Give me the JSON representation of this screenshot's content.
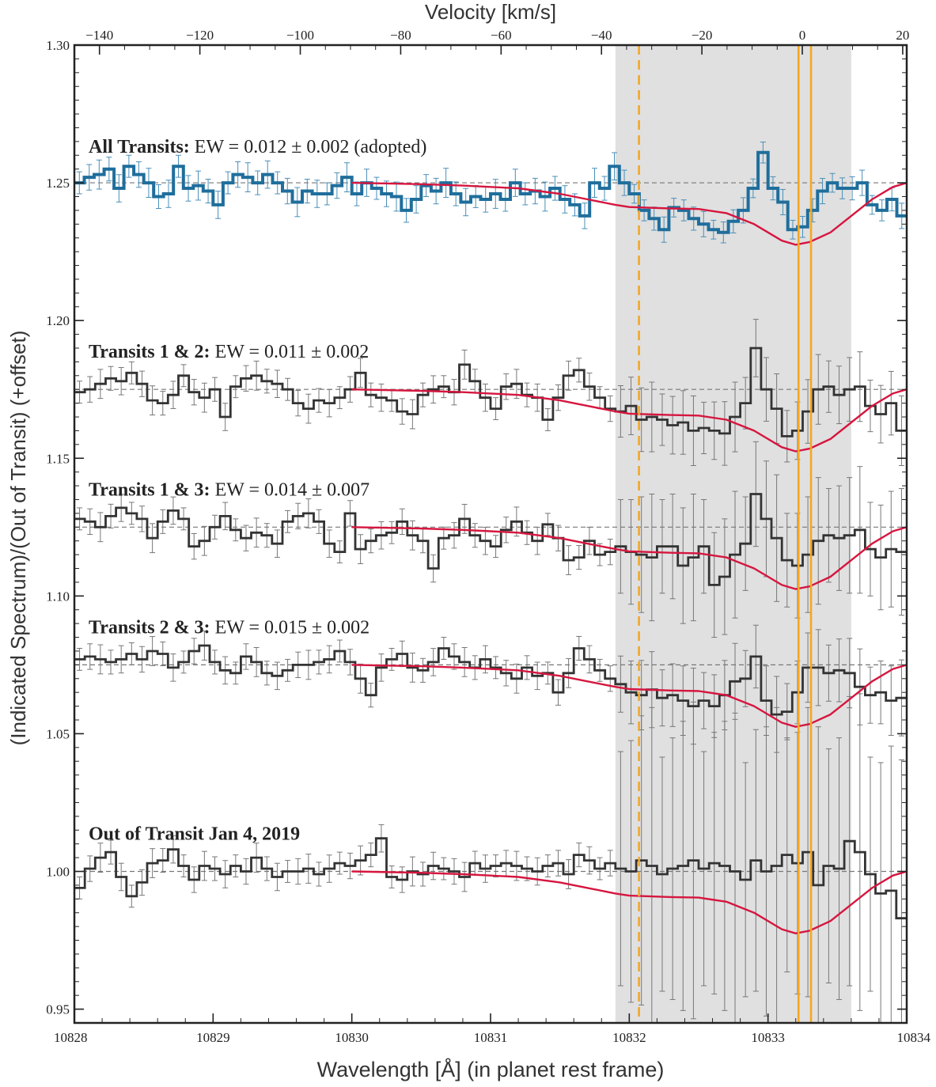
{
  "chart_data": {
    "type": "line",
    "xlabel": "Wavelength [Å] (in planet rest frame)",
    "x2label": "Velocity [km/s]",
    "ylabel": "(Indicated Spectrum)/(Out of Transit) (+offset)",
    "xlim": [
      10828,
      10834
    ],
    "ylim": [
      0.945,
      1.3
    ],
    "x2lim": [
      -145,
      20.8
    ],
    "xticks": [
      10828,
      10829,
      10830,
      10831,
      10832,
      10833,
      10834
    ],
    "x2ticks": [
      -140,
      -120,
      -100,
      -80,
      -60,
      -40,
      -20,
      0,
      20
    ],
    "yticks": [
      0.95,
      1.0,
      1.05,
      1.1,
      1.15,
      1.2,
      1.25,
      1.3
    ],
    "ytick_labels": [
      "0.95",
      "1.00",
      "1.05",
      "1.10",
      "1.15",
      "1.20",
      "1.25",
      "1.30"
    ],
    "shaded_region": [
      10831.9,
      10833.6
    ],
    "vlines": [
      {
        "x": 10832.07,
        "style": "dashed",
        "color": "#f5a623"
      },
      {
        "x": 10833.22,
        "style": "solid",
        "color": "#f5a623"
      },
      {
        "x": 10833.31,
        "style": "solid",
        "color": "#f5a623"
      }
    ],
    "series": [
      {
        "label_bold": "All Transits:",
        "label_rest": "EW = 0.012 ± 0.002 (adopted)",
        "color": "#1f6e9c",
        "errcolor": "#4a8fb8",
        "offset": 1.25,
        "thick": true,
        "err_start": 0.004,
        "err_end": 0.004,
        "values": [
          1.25,
          1.252,
          1.253,
          1.255,
          1.248,
          1.256,
          1.253,
          1.25,
          1.245,
          1.246,
          1.256,
          1.248,
          1.249,
          1.247,
          1.242,
          1.25,
          1.253,
          1.252,
          1.25,
          1.253,
          1.25,
          1.247,
          1.243,
          1.247,
          1.246,
          1.246,
          1.249,
          1.252,
          1.246,
          1.25,
          1.248,
          1.246,
          1.245,
          1.24,
          1.244,
          1.249,
          1.247,
          1.25,
          1.246,
          1.243,
          1.245,
          1.244,
          1.246,
          1.244,
          1.25,
          1.246,
          1.247,
          1.245,
          1.248,
          1.244,
          1.242,
          1.238,
          1.25,
          1.248,
          1.256,
          1.25,
          1.246,
          1.24,
          1.237,
          1.233,
          1.241,
          1.24,
          1.237,
          1.235,
          1.233,
          1.232,
          1.236,
          1.24,
          1.248,
          1.261,
          1.248,
          1.243,
          1.233,
          1.234,
          1.24,
          1.247,
          1.25,
          1.248,
          1.248,
          1.25,
          1.242,
          1.24,
          1.244,
          1.238
        ]
      },
      {
        "label_bold": "Transits 1 & 2:",
        "label_rest": "EW = 0.011 ± 0.002",
        "color": "#333333",
        "errcolor": "#777777",
        "offset": 1.175,
        "thick": false,
        "err_start": 0.004,
        "err_end": 0.011,
        "values": [
          1.174,
          1.175,
          1.177,
          1.179,
          1.178,
          1.181,
          1.177,
          1.171,
          1.17,
          1.173,
          1.18,
          1.174,
          1.172,
          1.175,
          1.165,
          1.176,
          1.179,
          1.18,
          1.178,
          1.177,
          1.175,
          1.17,
          1.168,
          1.171,
          1.17,
          1.172,
          1.175,
          1.181,
          1.173,
          1.172,
          1.171,
          1.167,
          1.166,
          1.173,
          1.175,
          1.176,
          1.174,
          1.184,
          1.178,
          1.172,
          1.168,
          1.176,
          1.177,
          1.173,
          1.172,
          1.164,
          1.172,
          1.18,
          1.182,
          1.176,
          1.172,
          1.168,
          1.167,
          1.169,
          1.164,
          1.165,
          1.164,
          1.162,
          1.163,
          1.16,
          1.161,
          1.16,
          1.159,
          1.165,
          1.17,
          1.19,
          1.175,
          1.168,
          1.158,
          1.16,
          1.167,
          1.175,
          1.176,
          1.173,
          1.175,
          1.176,
          1.169,
          1.166,
          1.17,
          1.16
        ]
      },
      {
        "label_bold": "Transits 1 & 3:",
        "label_rest": "EW = 0.014 ± 0.007",
        "color": "#333333",
        "errcolor": "#777777",
        "offset": 1.125,
        "thick": false,
        "err_start": 0.004,
        "err_end": 0.02,
        "values": [
          1.128,
          1.127,
          1.125,
          1.129,
          1.132,
          1.13,
          1.128,
          1.121,
          1.127,
          1.131,
          1.128,
          1.118,
          1.12,
          1.125,
          1.129,
          1.124,
          1.121,
          1.123,
          1.122,
          1.119,
          1.127,
          1.129,
          1.13,
          1.127,
          1.119,
          1.116,
          1.13,
          1.117,
          1.12,
          1.122,
          1.123,
          1.127,
          1.122,
          1.12,
          1.11,
          1.121,
          1.122,
          1.128,
          1.122,
          1.12,
          1.118,
          1.124,
          1.127,
          1.123,
          1.12,
          1.126,
          1.121,
          1.113,
          1.114,
          1.12,
          1.115,
          1.116,
          1.118,
          1.116,
          1.115,
          1.114,
          1.118,
          1.118,
          1.111,
          1.114,
          1.118,
          1.104,
          1.107,
          1.115,
          1.119,
          1.137,
          1.128,
          1.121,
          1.113,
          1.111,
          1.115,
          1.12,
          1.122,
          1.121,
          1.122,
          1.124,
          1.117,
          1.114,
          1.117,
          1.116
        ]
      },
      {
        "label_bold": "Transits 2 & 3:",
        "label_rest": "EW = 0.015 ± 0.002",
        "color": "#333333",
        "errcolor": "#777777",
        "offset": 1.075,
        "thick": false,
        "err_start": 0.004,
        "err_end": 0.012,
        "values": [
          1.077,
          1.078,
          1.077,
          1.076,
          1.077,
          1.079,
          1.077,
          1.08,
          1.079,
          1.074,
          1.076,
          1.08,
          1.082,
          1.076,
          1.073,
          1.072,
          1.078,
          1.076,
          1.072,
          1.071,
          1.073,
          1.075,
          1.075,
          1.076,
          1.077,
          1.08,
          1.076,
          1.07,
          1.064,
          1.074,
          1.077,
          1.079,
          1.074,
          1.073,
          1.076,
          1.081,
          1.078,
          1.076,
          1.074,
          1.077,
          1.074,
          1.072,
          1.07,
          1.074,
          1.071,
          1.072,
          1.065,
          1.072,
          1.081,
          1.077,
          1.073,
          1.07,
          1.068,
          1.065,
          1.064,
          1.066,
          1.063,
          1.064,
          1.062,
          1.06,
          1.062,
          1.06,
          1.064,
          1.069,
          1.07,
          1.078,
          1.062,
          1.057,
          1.058,
          1.065,
          1.074,
          1.074,
          1.072,
          1.073,
          1.072,
          1.067,
          1.064,
          1.065,
          1.062,
          1.063
        ]
      },
      {
        "label_bold": "Out of Transit Jan 4, 2019",
        "label_rest": "",
        "color": "#333333",
        "errcolor": "#777777",
        "offset": 1.0,
        "thick": false,
        "err_start": 0.004,
        "err_end": 0.05,
        "values": [
          0.994,
          1.001,
          1.005,
          1.007,
          0.998,
          0.991,
          0.996,
          1.003,
          1.004,
          1.008,
          1.002,
          0.997,
          1.002,
          1.001,
          0.999,
          1.002,
          1.0,
          1.005,
          1.001,
          0.998,
          1.0,
          1.0,
          1.001,
          0.999,
          1.001,
          1.003,
          1.002,
          1.004,
          1.006,
          1.012,
          0.998,
          0.997,
          1.0,
          0.999,
          1.002,
          1.001,
          1.0,
          0.998,
          1.003,
          1.001,
          1.002,
          1.003,
          1.002,
          1.001,
          1.0,
          1.002,
          1.003,
          0.999,
          1.006,
          1.004,
          1.001,
          1.003,
          1.001,
          1.0,
          1.004,
          1.002,
          0.999,
          1.001,
          1.002,
          1.004,
          1.001,
          1.003,
          1.002,
          1.0,
          0.997,
          1.004,
          1.0,
          1.002,
          1.006,
          1.003,
          1.007,
          0.995,
          1.002,
          1.001,
          1.011,
          1.007,
          0.999,
          0.992,
          0.993,
          0.983
        ]
      }
    ],
    "model": {
      "color": "#d6163f",
      "x_start": 10830.0,
      "x_end": 10834.0,
      "relative_depth": [
        [
          10830.0,
          0.0
        ],
        [
          10830.5,
          -0.0005
        ],
        [
          10830.8,
          -0.001
        ],
        [
          10831.0,
          -0.0015
        ],
        [
          10831.2,
          -0.002
        ],
        [
          10831.5,
          -0.004
        ],
        [
          10831.7,
          -0.006
        ],
        [
          10831.9,
          -0.008
        ],
        [
          10832.0,
          -0.0088
        ],
        [
          10832.3,
          -0.0093
        ],
        [
          10832.5,
          -0.0095
        ],
        [
          10832.7,
          -0.011
        ],
        [
          10832.9,
          -0.015
        ],
        [
          10833.1,
          -0.021
        ],
        [
          10833.2,
          -0.0225
        ],
        [
          10833.3,
          -0.0215
        ],
        [
          10833.45,
          -0.018
        ],
        [
          10833.6,
          -0.012
        ],
        [
          10833.75,
          -0.006
        ],
        [
          10833.9,
          -0.0015
        ],
        [
          10834.0,
          0.0
        ]
      ]
    }
  }
}
